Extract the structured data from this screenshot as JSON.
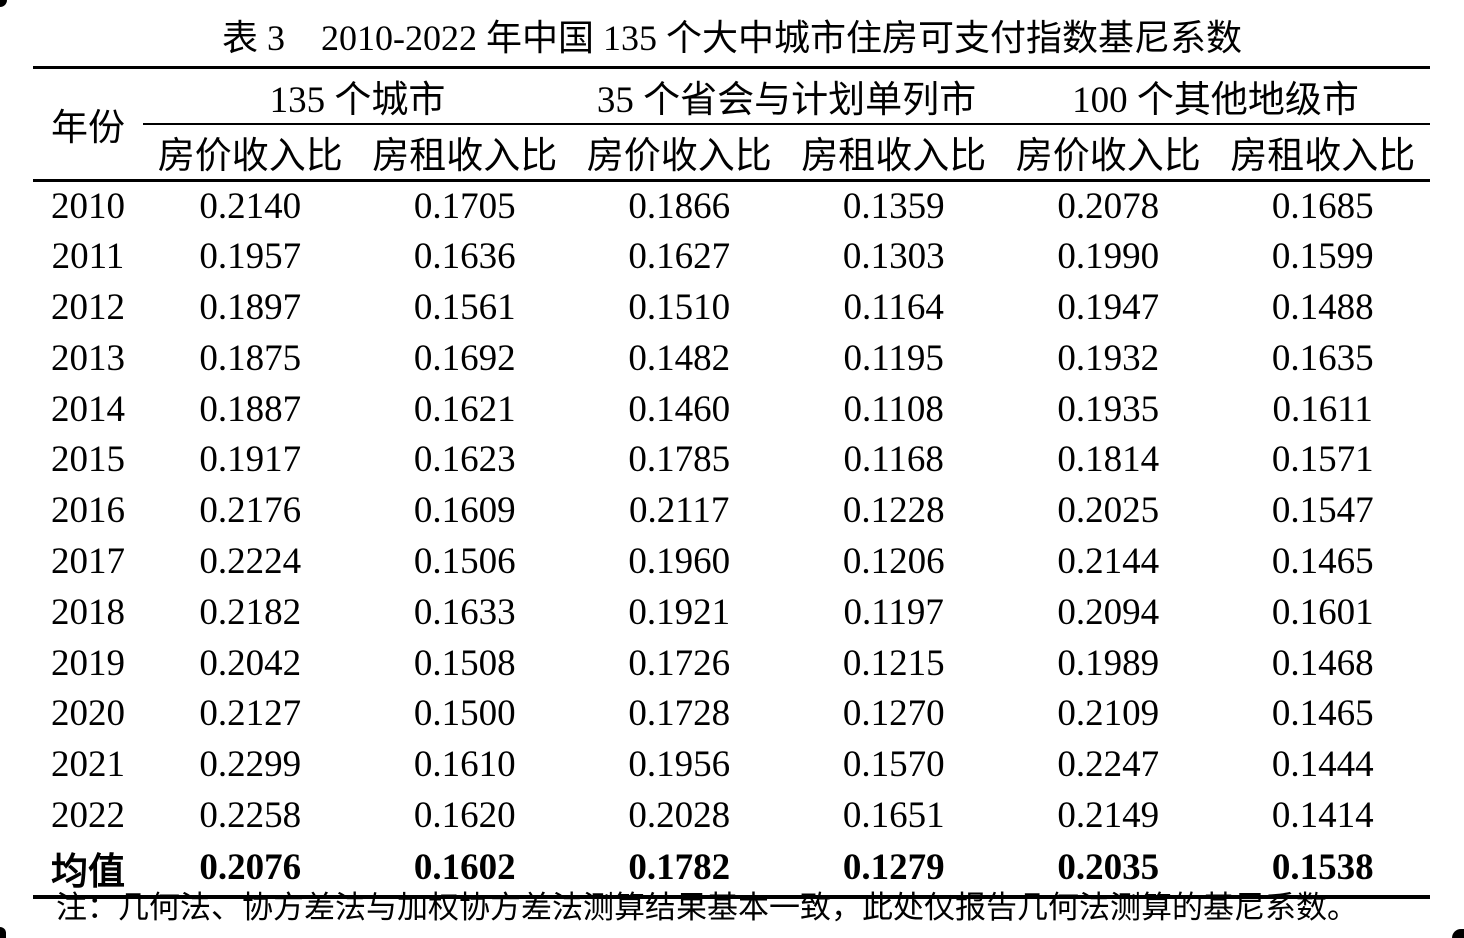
{
  "page": {
    "background": "#ffffff",
    "text_color": "#000000"
  },
  "title": "表 3　2010-2022 年中国 135 个大中城市住房可支付指数基尼系数",
  "table": {
    "year_header": "年份",
    "group_headers": [
      "135 个城市",
      "35 个省会与计划单列市",
      "100 个其他地级市"
    ],
    "sub_headers": [
      "房价收入比",
      "房租收入比",
      "房价收入比",
      "房租收入比",
      "房价收入比",
      "房租收入比"
    ],
    "rows": [
      {
        "year": "2010",
        "bold": false,
        "values": [
          "0.2140",
          "0.1705",
          "0.1866",
          "0.1359",
          "0.2078",
          "0.1685"
        ]
      },
      {
        "year": "2011",
        "bold": false,
        "values": [
          "0.1957",
          "0.1636",
          "0.1627",
          "0.1303",
          "0.1990",
          "0.1599"
        ]
      },
      {
        "year": "2012",
        "bold": false,
        "values": [
          "0.1897",
          "0.1561",
          "0.1510",
          "0.1164",
          "0.1947",
          "0.1488"
        ]
      },
      {
        "year": "2013",
        "bold": false,
        "values": [
          "0.1875",
          "0.1692",
          "0.1482",
          "0.1195",
          "0.1932",
          "0.1635"
        ]
      },
      {
        "year": "2014",
        "bold": false,
        "values": [
          "0.1887",
          "0.1621",
          "0.1460",
          "0.1108",
          "0.1935",
          "0.1611"
        ]
      },
      {
        "year": "2015",
        "bold": false,
        "values": [
          "0.1917",
          "0.1623",
          "0.1785",
          "0.1168",
          "0.1814",
          "0.1571"
        ]
      },
      {
        "year": "2016",
        "bold": false,
        "values": [
          "0.2176",
          "0.1609",
          "0.2117",
          "0.1228",
          "0.2025",
          "0.1547"
        ]
      },
      {
        "year": "2017",
        "bold": false,
        "values": [
          "0.2224",
          "0.1506",
          "0.1960",
          "0.1206",
          "0.2144",
          "0.1465"
        ]
      },
      {
        "year": "2018",
        "bold": false,
        "values": [
          "0.2182",
          "0.1633",
          "0.1921",
          "0.1197",
          "0.2094",
          "0.1601"
        ]
      },
      {
        "year": "2019",
        "bold": false,
        "values": [
          "0.2042",
          "0.1508",
          "0.1726",
          "0.1215",
          "0.1989",
          "0.1468"
        ]
      },
      {
        "year": "2020",
        "bold": false,
        "values": [
          "0.2127",
          "0.1500",
          "0.1728",
          "0.1270",
          "0.2109",
          "0.1465"
        ]
      },
      {
        "year": "2021",
        "bold": false,
        "values": [
          "0.2299",
          "0.1610",
          "0.1956",
          "0.1570",
          "0.2247",
          "0.1444"
        ]
      },
      {
        "year": "2022",
        "bold": false,
        "values": [
          "0.2258",
          "0.1620",
          "0.2028",
          "0.1651",
          "0.2149",
          "0.1414"
        ]
      },
      {
        "year": "均值",
        "bold": true,
        "values": [
          "0.2076",
          "0.1602",
          "0.1782",
          "0.1279",
          "0.2035",
          "0.1538"
        ]
      }
    ]
  },
  "footnote": "注：几何法、协方差法与加权协方差法测算结果基本一致，此处仅报告几何法测算的基尼系数。"
}
